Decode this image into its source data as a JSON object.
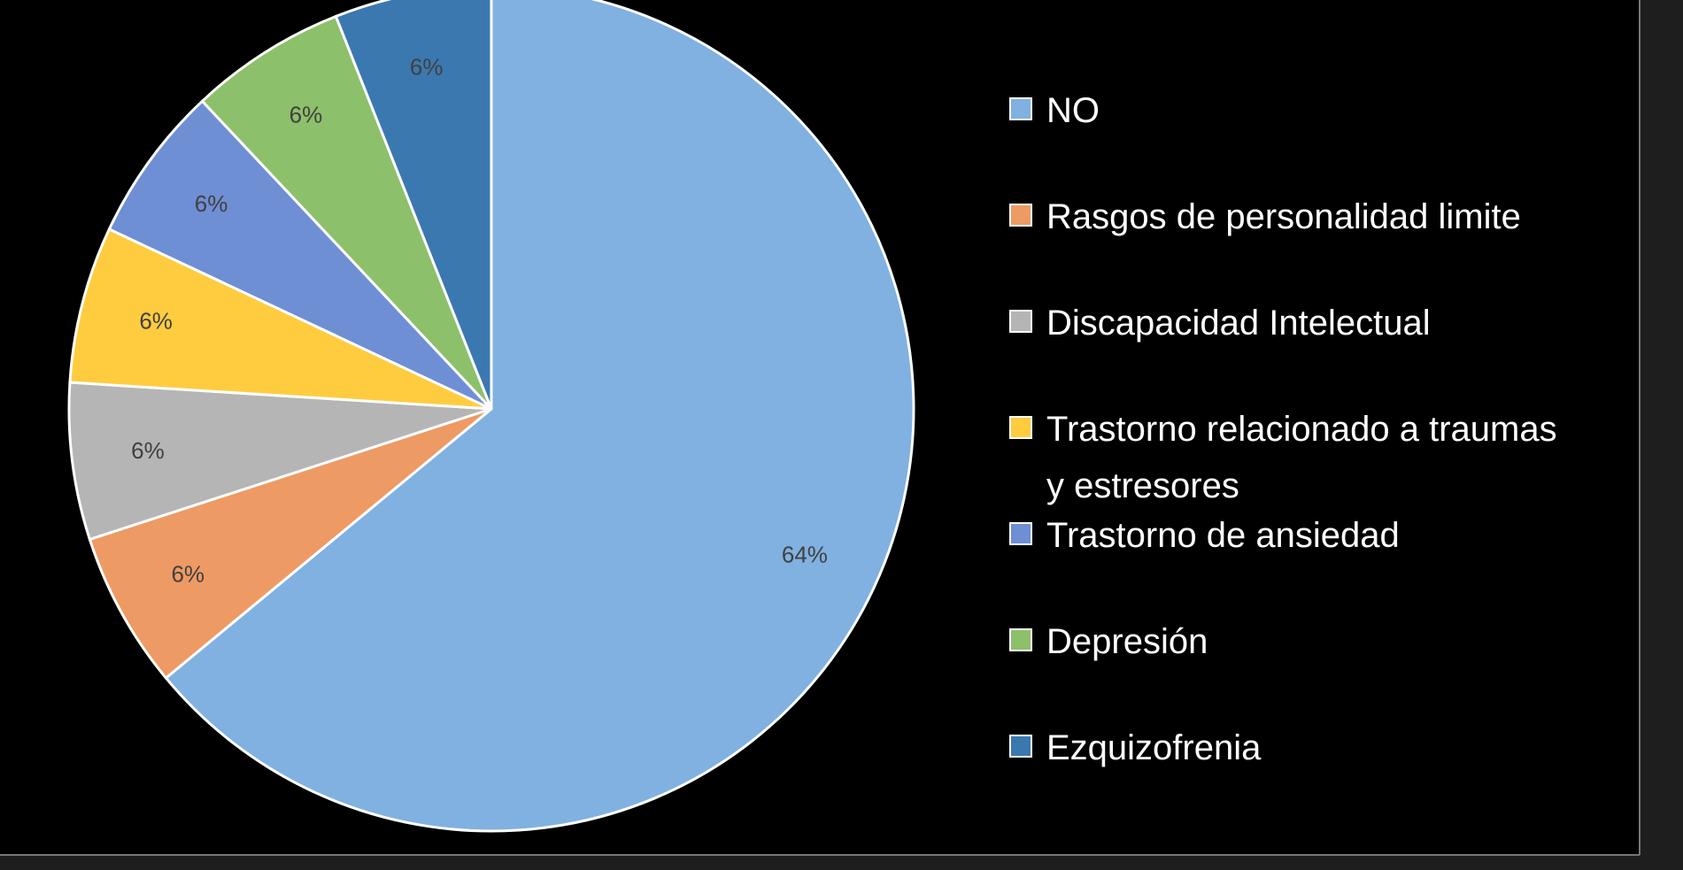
{
  "chart_data": {
    "type": "pie",
    "categories": [
      "NO",
      "Rasgos de personalidad limite",
      "Discapacidad Intelectual",
      "Trastorno relacionado a traumas y estresores",
      "Trastorno de ansiedad",
      "Depresión",
      "Ezquizofrenia"
    ],
    "values": [
      64,
      6,
      6,
      6,
      6,
      6,
      6
    ],
    "value_labels": [
      "64%",
      "6%",
      "6%",
      "6%",
      "6%",
      "6%",
      "6%"
    ],
    "colors": [
      "#80b1e0",
      "#ee9a64",
      "#b5b5b5",
      "#ffcc40",
      "#6f8fd4",
      "#8dc06a",
      "#3c78b0"
    ],
    "legend": "right"
  }
}
